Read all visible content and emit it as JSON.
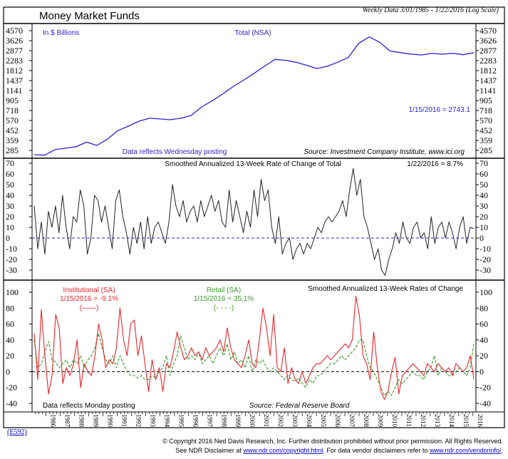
{
  "header": {
    "title": "Money Market Funds",
    "subtitle": "Weekly Data 3/01/1985 - 1/22/2016 (Log Scale)"
  },
  "colors": {
    "total": "#2a1fd6",
    "roc": "#222222",
    "institutional": "#e8262b",
    "retail": "#3a9a2a",
    "zero_line": "#2a1fd6"
  },
  "chart_data": [
    {
      "type": "line",
      "title": "Total (NSA)",
      "units_label": "In $ Billions",
      "scale": "log",
      "yticks": [
        4570,
        3626,
        2877,
        2283,
        1812,
        1437,
        1141,
        905,
        718,
        570,
        452,
        359,
        285
      ],
      "ylim": [
        285,
        4570
      ],
      "xlim": [
        1985.17,
        2016.06
      ],
      "annotation": "1/15/2016 = 2743.1",
      "note": "Data reflects Wednesday posting",
      "source": "Source: Investment Company Institute, www.ici.org",
      "series": [
        {
          "name": "Total (NSA)",
          "values": [
            258,
            255,
            290,
            300,
            310,
            345,
            320,
            370,
            450,
            500,
            560,
            600,
            590,
            580,
            600,
            640,
            780,
            900,
            1050,
            1250,
            1450,
            1700,
            2000,
            2350,
            2300,
            2200,
            2050,
            1900,
            2000,
            2200,
            2450,
            3400,
            3950,
            3500,
            2850,
            2750,
            2650,
            2600,
            2700,
            2650,
            2700,
            2620,
            2743
          ]
        }
      ]
    },
    {
      "type": "line",
      "title": "Smoothed Annualized 13-Week Rate of Change of Total",
      "annotation": "1/22/2016 = 8.7%",
      "ylim": [
        -35,
        75
      ],
      "yticks": [
        70,
        60,
        50,
        40,
        30,
        20,
        10,
        0,
        -10,
        -20,
        -30
      ],
      "reference_line": 0,
      "series": [
        {
          "name": "Total ROC",
          "values": [
            30,
            -10,
            15,
            -15,
            25,
            10,
            30,
            5,
            40,
            10,
            -10,
            20,
            15,
            45,
            30,
            -15,
            0,
            40,
            35,
            15,
            30,
            10,
            -10,
            35,
            45,
            20,
            5,
            -15,
            10,
            -5,
            15,
            -10,
            20,
            -5,
            10,
            15,
            5,
            -5,
            15,
            50,
            30,
            20,
            35,
            15,
            25,
            30,
            15,
            35,
            20,
            30,
            40,
            25,
            35,
            15,
            10,
            45,
            15,
            35,
            20,
            5,
            25,
            10,
            45,
            20,
            55,
            35,
            45,
            10,
            -5,
            20,
            -15,
            -5,
            0,
            -20,
            -10,
            -5,
            -15,
            -5,
            -10,
            0,
            10,
            5,
            15,
            20,
            15,
            20,
            25,
            35,
            20,
            45,
            65,
            40,
            55,
            20,
            10,
            -5,
            -20,
            -10,
            -30,
            -35,
            -20,
            -10,
            5,
            -5,
            15,
            0,
            -5,
            10,
            15,
            0,
            5,
            -10,
            20,
            -5,
            10,
            15,
            0,
            15,
            5,
            -10,
            10,
            20,
            -5,
            10,
            8.7
          ]
        }
      ]
    },
    {
      "type": "line",
      "title": "Smoothed Annualized 13-Week Rates of Change",
      "ylim": [
        -45,
        110
      ],
      "yticks": [
        100,
        80,
        60,
        40,
        20,
        0,
        -20,
        -40
      ],
      "reference_line": 0,
      "note": "Data reflects Monday posting",
      "source": "Source: Federal Reserve Board",
      "legend": [
        {
          "name": "Institutional (SA)",
          "value": "1/15/2016 = -9.1%",
          "key": "(——)"
        },
        {
          "name": "Retail (SA)",
          "value": "1/15/2016 = 35.1%",
          "key": "(- - - -)"
        }
      ],
      "series": [
        {
          "name": "Institutional (SA)",
          "values": [
            48,
            -10,
            78,
            20,
            -28,
            -5,
            72,
            55,
            -15,
            5,
            -5,
            10,
            40,
            -20,
            10,
            0,
            -5,
            20,
            60,
            40,
            5,
            15,
            10,
            30,
            80,
            40,
            20,
            60,
            65,
            20,
            45,
            10,
            -25,
            15,
            -10,
            5,
            -25,
            10,
            5,
            25,
            50,
            30,
            15,
            20,
            30,
            20,
            25,
            15,
            30,
            20,
            25,
            30,
            40,
            25,
            55,
            30,
            15,
            10,
            5,
            20,
            40,
            10,
            5,
            40,
            80,
            55,
            20,
            72,
            5,
            0,
            30,
            -15,
            5,
            -10,
            -15,
            0,
            -15,
            -5,
            5,
            10,
            10,
            15,
            20,
            15,
            20,
            25,
            30,
            35,
            30,
            40,
            95,
            70,
            20,
            10,
            -10,
            50,
            5,
            -25,
            -35,
            -25,
            0,
            18,
            -28,
            -5,
            0,
            5,
            10,
            5,
            0,
            -5,
            10,
            5,
            0,
            10,
            5,
            0,
            5,
            -5,
            10,
            5,
            0,
            5,
            20,
            -9.1
          ]
        },
        {
          "name": "Retail (SA)",
          "values": [
            40,
            5,
            10,
            25,
            38,
            15,
            12,
            5,
            10,
            15,
            5,
            15,
            10,
            20,
            5,
            15,
            20,
            30,
            48,
            30,
            15,
            10,
            20,
            5,
            20,
            10,
            0,
            -5,
            -5,
            -8,
            -5,
            -10,
            -10,
            -5,
            -8,
            0,
            5,
            20,
            -5,
            10,
            20,
            45,
            30,
            15,
            20,
            15,
            25,
            10,
            15,
            20,
            10,
            20,
            30,
            20,
            35,
            15,
            25,
            10,
            15,
            5,
            20,
            0,
            15,
            10,
            15,
            5,
            0,
            5,
            0,
            -5,
            -10,
            -5,
            -10,
            -12,
            -8,
            -15,
            -20,
            -10,
            -15,
            -5,
            -5,
            0,
            5,
            10,
            10,
            15,
            20,
            15,
            20,
            25,
            30,
            40,
            40,
            20,
            5,
            0,
            -10,
            -20,
            -30,
            -25,
            -30,
            -20,
            -10,
            -15,
            -10,
            -5,
            0,
            -5,
            -5,
            -10,
            0,
            5,
            20,
            -5,
            5,
            0,
            -5,
            -5,
            0,
            5,
            0,
            -5,
            5,
            35.1
          ]
        }
      ]
    }
  ],
  "x_axis": {
    "years": [
      "1986",
      "1987",
      "1988",
      "1989",
      "1990",
      "1991",
      "1992",
      "1993",
      "1994",
      "1995",
      "1996",
      "1997",
      "1998",
      "1999",
      "2000",
      "2001",
      "2002",
      "2003",
      "2004",
      "2005",
      "2006",
      "2007",
      "2008",
      "2009",
      "2010",
      "2011",
      "2012",
      "2013",
      "2014",
      "2015",
      "2016"
    ]
  },
  "footer": {
    "code": "(E592)",
    "line1": "© Copyright 2016 Ned Davis Research, Inc.  Further distribution prohibited without prior permission.  All Rights Reserved.",
    "line2a": "See NDR Disclaimer at ",
    "link1": "www.ndr.com/copyright.html",
    "line2b": ". For data vendor disclaimers refer to ",
    "link2": "www.ndr.com/vendorinfo/",
    "line2c": "."
  }
}
